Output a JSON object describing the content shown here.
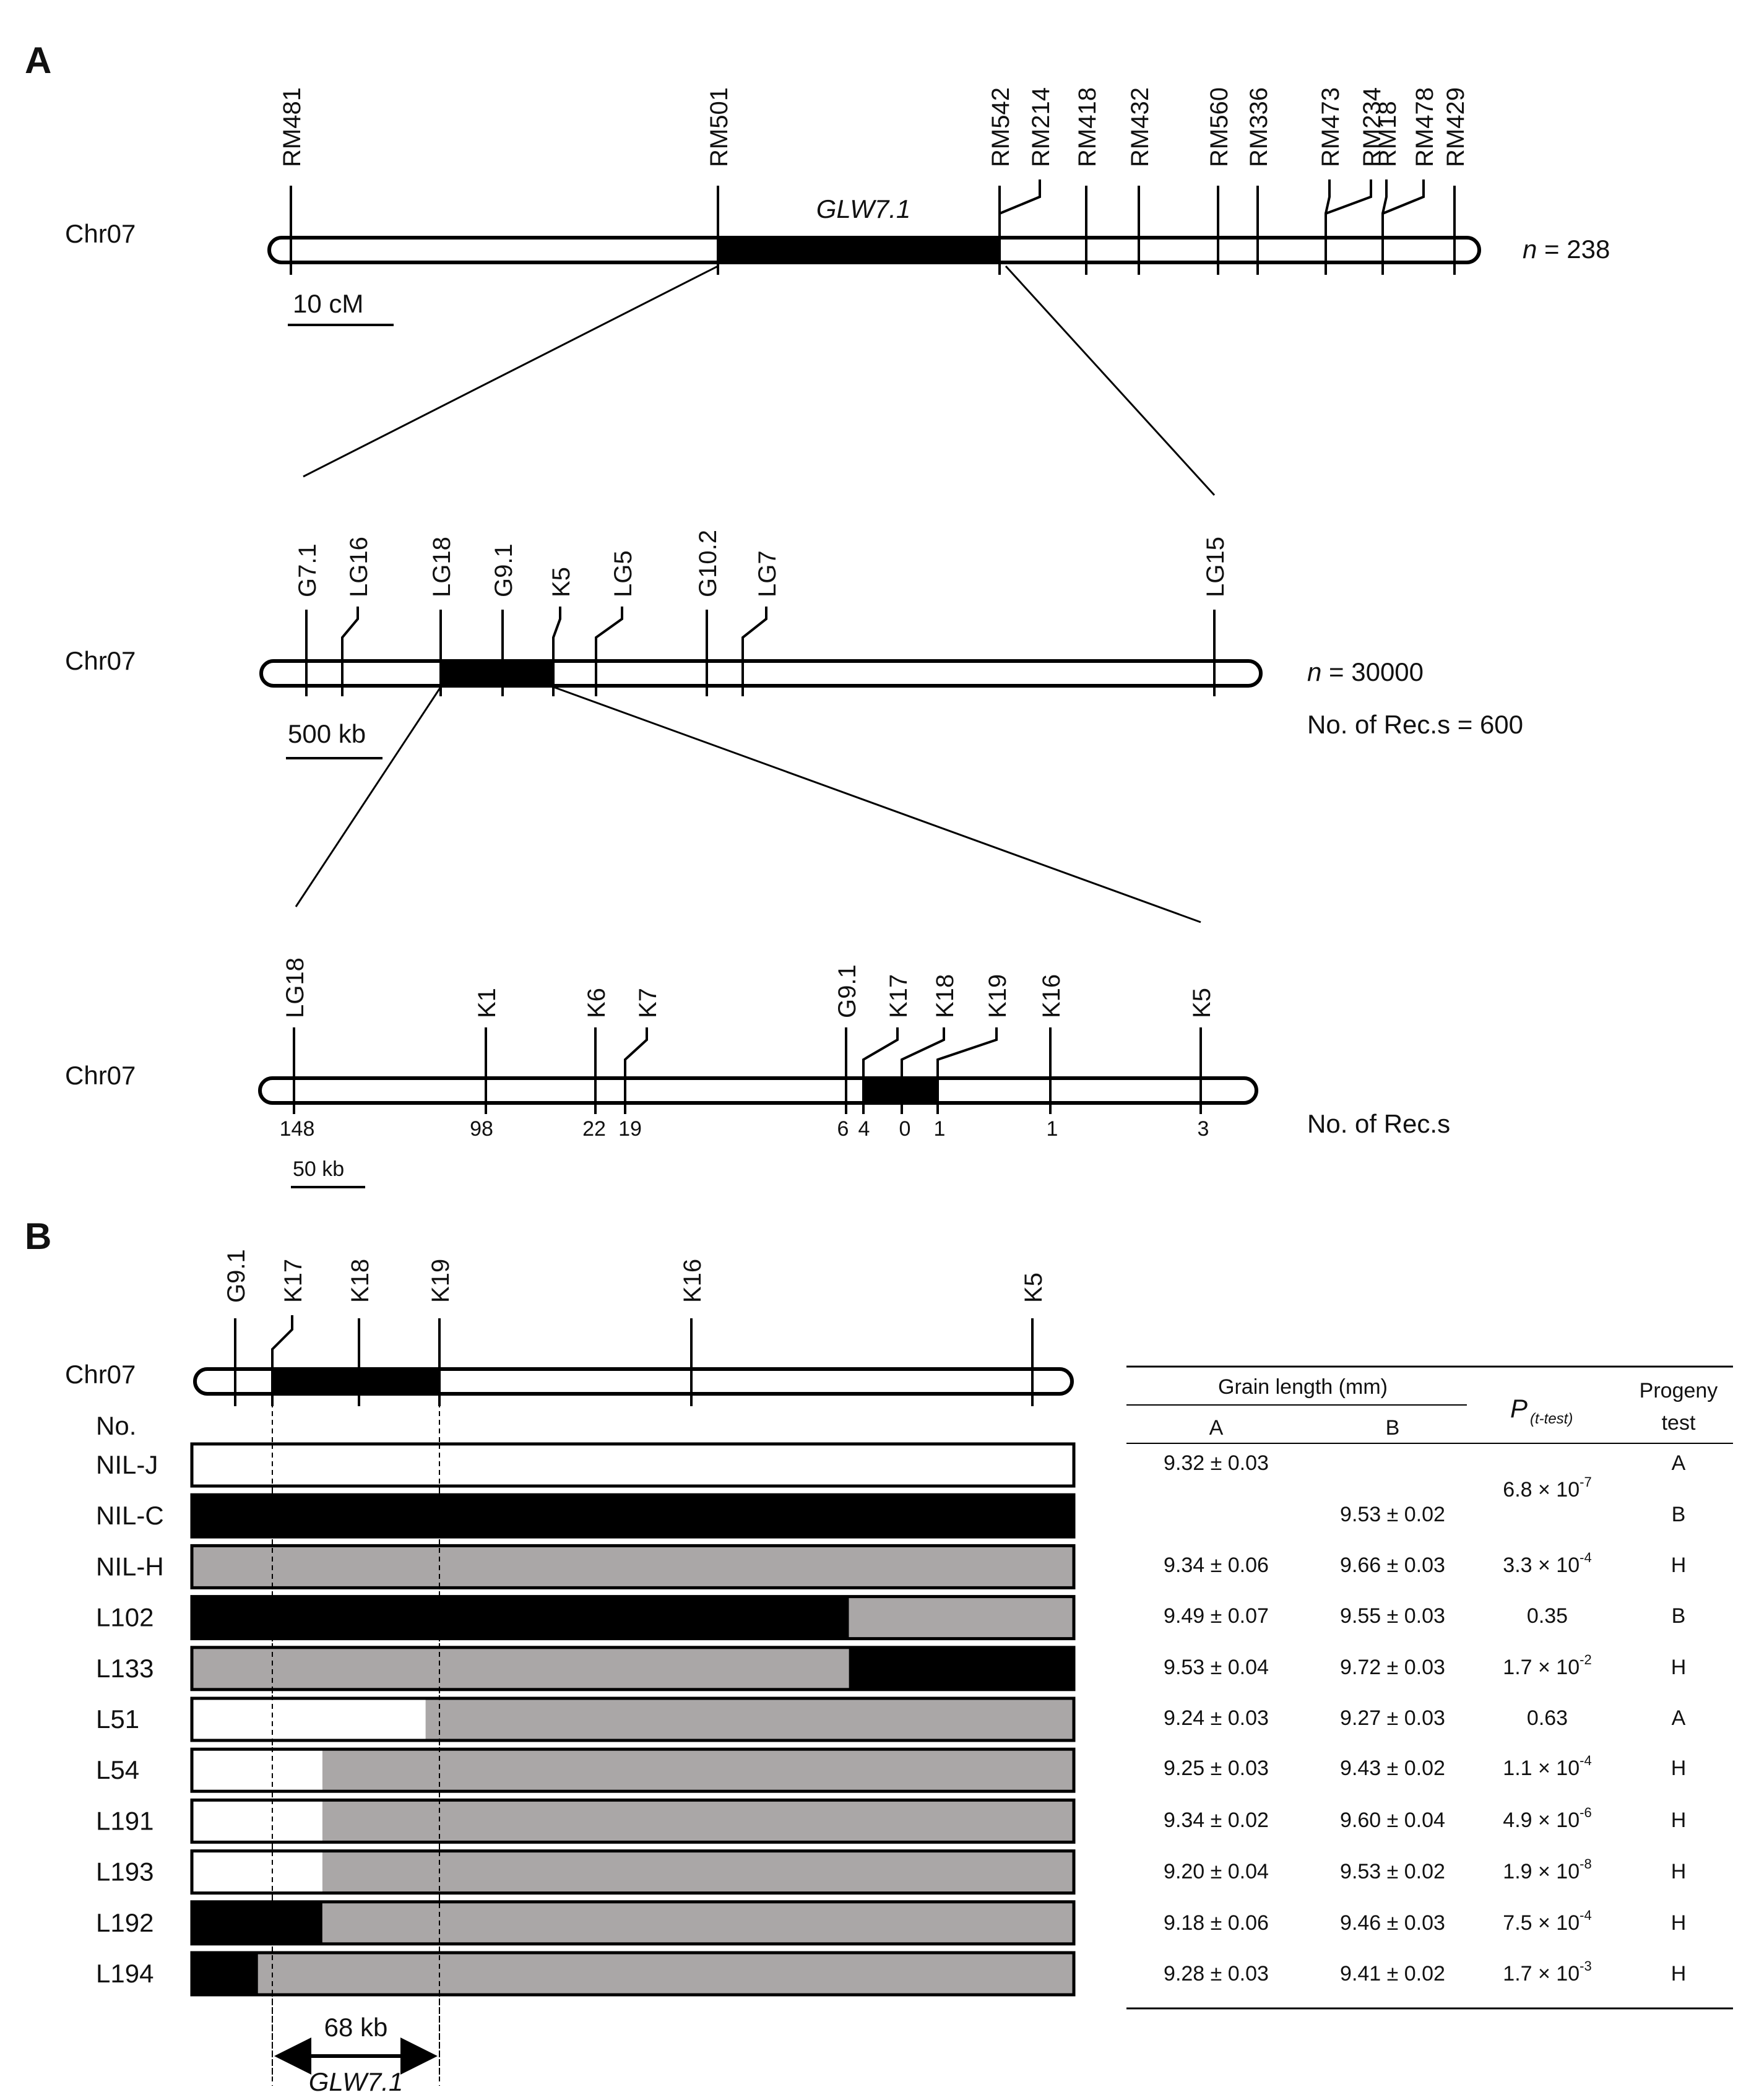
{
  "panels": {
    "a": "A",
    "b": "B"
  },
  "a_top": {
    "chr": "Chr07",
    "markers": [
      "RM481",
      "RM501",
      "RM542",
      "RM214",
      "RM418",
      "RM432",
      "RM560",
      "RM336",
      "RM473",
      "RM234",
      "RM18",
      "RM478",
      "RM429"
    ],
    "qtl": "GLW7.1",
    "n_prefix": "n",
    "n_suffix": " = 238",
    "scale": "10 cM"
  },
  "a_mid": {
    "chr": "Chr07",
    "markers": [
      "G7.1",
      "LG16",
      "LG18",
      "G9.1",
      "K5",
      "LG5",
      "G10.2",
      "LG7",
      "LG15"
    ],
    "n_prefix": "n",
    "n_suffix": " = 30000",
    "recs": "No. of Rec.s = 600",
    "scale": "500 kb"
  },
  "a_bot": {
    "chr": "Chr07",
    "markers": [
      "LG18",
      "K1",
      "K6",
      "K7",
      "G9.1",
      "K17",
      "K18",
      "K19",
      "K16",
      "K5"
    ],
    "counts": [
      "148",
      "98",
      "22",
      "19",
      "6",
      "4",
      "0",
      "1",
      "1",
      "3"
    ],
    "recs": "No. of Rec.s",
    "scale": "50 kb"
  },
  "b": {
    "chr": "Chr07",
    "markers": [
      "G9.1",
      "K17",
      "K18",
      "K19",
      "K16",
      "K5"
    ],
    "no_label": "No.",
    "size": "68 kb",
    "gene": "GLW7.1",
    "table_header": {
      "grain_length": "Grain length (mm)",
      "col_a": "A",
      "col_b": "B",
      "p": "P",
      "p_sub": "(t-test)",
      "progeny1": "Progeny",
      "progeny2": "test"
    },
    "lines": [
      {
        "name": "NIL-J",
        "genotype": [
          "W"
        ],
        "a": "9.32 ± 0.03",
        "b": "",
        "p": "",
        "p_exp": "",
        "test": "A"
      },
      {
        "name": "NIL-C",
        "genotype": [
          "K"
        ],
        "a": "",
        "b": "9.53 ± 0.02",
        "p": "",
        "p_exp": "",
        "test": "B"
      },
      {
        "name": "NIL-H",
        "genotype": [
          "G"
        ],
        "a": "9.34 ± 0.06",
        "b": "9.66 ± 0.03",
        "p": "3.3 × 10",
        "p_exp": "-4",
        "test": "H"
      },
      {
        "name": "L102",
        "genotype": [
          "K",
          "G"
        ],
        "a": "9.49 ± 0.07",
        "b": "9.55 ± 0.03",
        "p": "0.35",
        "p_exp": "",
        "test": "B"
      },
      {
        "name": "L133",
        "genotype": [
          "G",
          "K"
        ],
        "a": "9.53 ± 0.04",
        "b": "9.72 ± 0.03",
        "p": "1.7 × 10",
        "p_exp": "-2",
        "test": "H"
      },
      {
        "name": "L51",
        "genotype": [
          "W",
          "G"
        ],
        "a": "9.24 ± 0.03",
        "b": "9.27 ± 0.03",
        "p": "0.63",
        "p_exp": "",
        "test": "A"
      },
      {
        "name": "L54",
        "genotype": [
          "W",
          "G"
        ],
        "a": "9.25 ± 0.03",
        "b": "9.43 ± 0.02",
        "p": "1.1 × 10",
        "p_exp": "-4",
        "test": "H"
      },
      {
        "name": "L191",
        "genotype": [
          "W",
          "G"
        ],
        "a": "9.34 ± 0.02",
        "b": "9.60 ± 0.04",
        "p": "4.9 × 10",
        "p_exp": "-6",
        "test": "H"
      },
      {
        "name": "L193",
        "genotype": [
          "W",
          "G"
        ],
        "a": "9.20 ± 0.04",
        "b": "9.53 ± 0.02",
        "p": "1.9 × 10",
        "p_exp": "-8",
        "test": "H"
      },
      {
        "name": "L192",
        "genotype": [
          "K",
          "G"
        ],
        "a": "9.18 ± 0.06",
        "b": "9.46 ± 0.03",
        "p": "7.5 × 10",
        "p_exp": "-4",
        "test": "H"
      },
      {
        "name": "L194",
        "genotype": [
          "K",
          "G"
        ],
        "a": "9.28 ± 0.03",
        "b": "9.41 ± 0.02",
        "p": "1.7 × 10",
        "p_exp": "-3",
        "test": "H"
      }
    ],
    "shared_p": {
      "p": "6.8 × 10",
      "p_exp": "-7"
    }
  },
  "colors": {
    "white": "#ffffff",
    "black": "#000000",
    "gray": "#aaa7a7"
  }
}
